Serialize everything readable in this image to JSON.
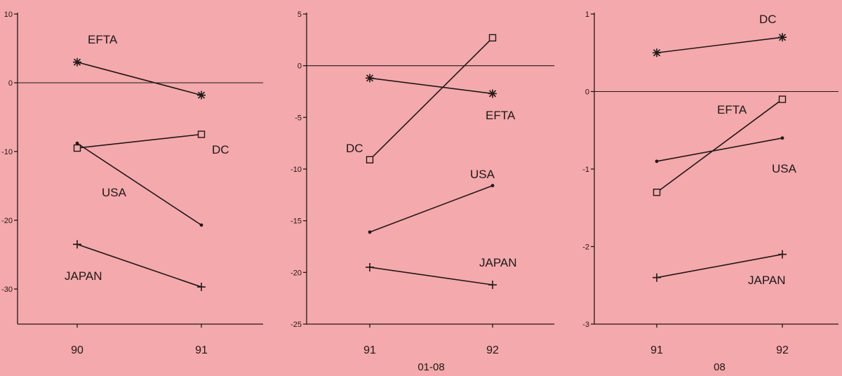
{
  "chart_data": [
    {
      "type": "line",
      "title": "",
      "xlabel": "",
      "ylabel": "",
      "categories": [
        "90",
        "91"
      ],
      "ylim": [
        -35,
        10
      ],
      "yticks": [
        10,
        0,
        -10,
        -20,
        -30
      ],
      "grid": false,
      "series": [
        {
          "name": "EFTA",
          "marker": "asterisk",
          "values": [
            3,
            -1.8
          ]
        },
        {
          "name": "DC",
          "marker": "square",
          "values": [
            -9.5,
            -7.5
          ]
        },
        {
          "name": "USA",
          "marker": "dot",
          "values": [
            -8.8,
            -20.7
          ]
        },
        {
          "name": "JAPAN",
          "marker": "plus",
          "values": [
            -23.5,
            -29.7
          ]
        }
      ]
    },
    {
      "type": "line",
      "title": "",
      "xlabel": "01-08",
      "ylabel": "",
      "categories": [
        "91",
        "92"
      ],
      "ylim": [
        -25,
        5
      ],
      "yticks": [
        5,
        0,
        -5,
        -10,
        -15,
        -20,
        -25
      ],
      "grid": false,
      "series": [
        {
          "name": "EFTA",
          "marker": "asterisk",
          "values": [
            -1.2,
            -2.7
          ]
        },
        {
          "name": "DC",
          "marker": "square",
          "values": [
            -9.1,
            2.7
          ]
        },
        {
          "name": "USA",
          "marker": "dot",
          "values": [
            -16.1,
            -11.6
          ]
        },
        {
          "name": "JAPAN",
          "marker": "plus",
          "values": [
            -19.5,
            -21.2
          ]
        }
      ]
    },
    {
      "type": "line",
      "title": "",
      "xlabel": "08",
      "ylabel": "",
      "categories": [
        "91",
        "92"
      ],
      "ylim": [
        -3,
        1
      ],
      "yticks": [
        1,
        0,
        -1,
        -2,
        -3
      ],
      "grid": false,
      "series": [
        {
          "name": "DC",
          "marker": "asterisk",
          "values": [
            0.5,
            0.7
          ]
        },
        {
          "name": "EFTA",
          "marker": "square",
          "values": [
            -1.3,
            -0.1
          ]
        },
        {
          "name": "USA",
          "marker": "dot",
          "values": [
            -0.9,
            -0.6
          ]
        },
        {
          "name": "JAPAN",
          "marker": "plus",
          "values": [
            -2.4,
            -2.1
          ]
        }
      ]
    }
  ]
}
